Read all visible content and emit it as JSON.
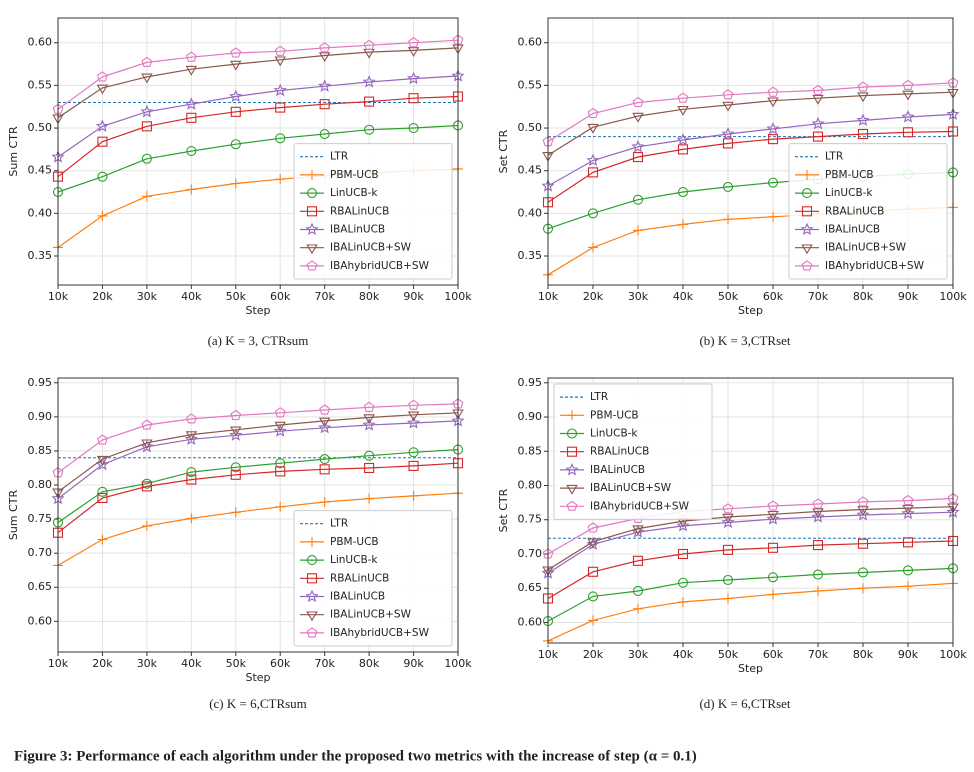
{
  "figure_caption": "Figure 3: Performance of each algorithm under the proposed two metrics with the increase of step (α = 0.1)",
  "chart_data": [
    {
      "type": "line",
      "caption": "(a) K = 3, CTRsum",
      "xlabel": "Step",
      "ylabel": "Sum CTR",
      "categories": [
        "10k",
        "20k",
        "30k",
        "40k",
        "50k",
        "60k",
        "70k",
        "80k",
        "90k",
        "100k"
      ],
      "ylim": [
        0.316,
        0.629
      ],
      "yticks": [
        0.35,
        {
          "value": 0.4,
          "label": "0.40"
        },
        0.45,
        {
          "value": 0.5,
          "label": "0.50"
        },
        0.55,
        {
          "value": 0.6,
          "label": "0.60"
        }
      ],
      "grid": true,
      "legend": "lower right",
      "series": [
        {
          "name": "LTR",
          "color": "#1f77b4",
          "linestyle": "dashed",
          "marker": "none",
          "values": [
            0.53,
            0.53,
            0.53,
            0.53,
            0.53,
            0.53,
            0.53,
            0.53,
            0.53,
            0.53
          ]
        },
        {
          "name": "PBM-UCB",
          "color": "#ff7f0e",
          "linestyle": "solid",
          "marker": "plus",
          "values": [
            0.36,
            0.397,
            0.42,
            0.428,
            0.435,
            0.44,
            0.444,
            0.447,
            0.45,
            0.452
          ]
        },
        {
          "name": "LinUCB-k",
          "color": "#2ca02c",
          "linestyle": "solid",
          "marker": "circle",
          "values": [
            0.425,
            0.443,
            0.464,
            0.473,
            0.481,
            0.488,
            0.493,
            0.498,
            0.5,
            0.503
          ]
        },
        {
          "name": "RBALinUCB",
          "color": "#d62728",
          "linestyle": "solid",
          "marker": "square",
          "values": [
            0.443,
            0.484,
            0.502,
            0.512,
            0.519,
            0.524,
            0.528,
            0.531,
            0.535,
            0.537
          ]
        },
        {
          "name": "IBALinUCB",
          "color": "#9467bd",
          "linestyle": "solid",
          "marker": "star",
          "values": [
            0.466,
            0.502,
            0.519,
            0.528,
            0.537,
            0.544,
            0.549,
            0.554,
            0.558,
            0.561
          ]
        },
        {
          "name": "IBALinUCB+SW",
          "color": "#8c564b",
          "linestyle": "solid",
          "marker": "triangle-down",
          "values": [
            0.512,
            0.547,
            0.56,
            0.569,
            0.575,
            0.58,
            0.585,
            0.589,
            0.591,
            0.594
          ]
        },
        {
          "name": "IBAhybridUCB+SW",
          "color": "#e377c2",
          "linestyle": "solid",
          "marker": "pentagon",
          "values": [
            0.522,
            0.56,
            0.577,
            0.583,
            0.588,
            0.59,
            0.594,
            0.597,
            0.6,
            0.603
          ]
        }
      ]
    },
    {
      "type": "line",
      "caption": "(b) K = 3,CTRset",
      "xlabel": "Step",
      "ylabel": "Set CTR",
      "categories": [
        "10k",
        "20k",
        "30k",
        "40k",
        "50k",
        "60k",
        "70k",
        "80k",
        "90k",
        "100k"
      ],
      "ylim": [
        0.316,
        0.629
      ],
      "yticks": [
        0.35,
        {
          "value": 0.4,
          "label": "0.40"
        },
        0.45,
        {
          "value": 0.5,
          "label": "0.50"
        },
        0.55,
        {
          "value": 0.6,
          "label": "0.60"
        }
      ],
      "grid": true,
      "legend": "lower right",
      "series": [
        {
          "name": "LTR",
          "color": "#1f77b4",
          "linestyle": "dashed",
          "marker": "none",
          "values": [
            0.49,
            0.49,
            0.49,
            0.49,
            0.49,
            0.49,
            0.49,
            0.49,
            0.49,
            0.49
          ]
        },
        {
          "name": "PBM-UCB",
          "color": "#ff7f0e",
          "linestyle": "solid",
          "marker": "plus",
          "values": [
            0.328,
            0.36,
            0.38,
            0.387,
            0.393,
            0.396,
            0.399,
            0.402,
            0.405,
            0.407
          ]
        },
        {
          "name": "LinUCB-k",
          "color": "#2ca02c",
          "linestyle": "solid",
          "marker": "circle",
          "values": [
            0.382,
            0.4,
            0.416,
            0.425,
            0.431,
            0.436,
            0.44,
            0.443,
            0.446,
            0.448
          ]
        },
        {
          "name": "RBALinUCB",
          "color": "#d62728",
          "linestyle": "solid",
          "marker": "square",
          "values": [
            0.413,
            0.448,
            0.466,
            0.475,
            0.482,
            0.487,
            0.49,
            0.493,
            0.495,
            0.496
          ]
        },
        {
          "name": "IBALinUCB",
          "color": "#9467bd",
          "linestyle": "solid",
          "marker": "star",
          "values": [
            0.432,
            0.462,
            0.478,
            0.486,
            0.493,
            0.499,
            0.505,
            0.509,
            0.513,
            0.516
          ]
        },
        {
          "name": "IBALinUCB+SW",
          "color": "#8c564b",
          "linestyle": "solid",
          "marker": "triangle-down",
          "values": [
            0.468,
            0.501,
            0.514,
            0.522,
            0.527,
            0.532,
            0.535,
            0.538,
            0.54,
            0.542
          ]
        },
        {
          "name": "IBAhybridUCB+SW",
          "color": "#e377c2",
          "linestyle": "solid",
          "marker": "pentagon",
          "values": [
            0.484,
            0.517,
            0.53,
            0.535,
            0.539,
            0.542,
            0.544,
            0.548,
            0.55,
            0.553
          ]
        }
      ]
    },
    {
      "type": "line",
      "caption": "(c) K = 6,CTRsum",
      "xlabel": "Step",
      "ylabel": "Sum CTR",
      "categories": [
        "10k",
        "20k",
        "30k",
        "40k",
        "50k",
        "60k",
        "70k",
        "80k",
        "90k",
        "100k"
      ],
      "ylim": [
        0.555,
        0.957
      ],
      "yticks": [
        {
          "value": 0.6,
          "label": "0.60"
        },
        0.65,
        {
          "value": 0.7,
          "label": "0.70"
        },
        0.75,
        {
          "value": 0.8,
          "label": "0.80"
        },
        0.85,
        {
          "value": 0.9,
          "label": "0.90"
        },
        0.95
      ],
      "grid": true,
      "legend": "lower right",
      "series": [
        {
          "name": "LTR",
          "color": "#1f77b4",
          "linestyle": "dashed",
          "marker": "none",
          "values": [
            0.84,
            0.84,
            0.84,
            0.84,
            0.84,
            0.84,
            0.84,
            0.84,
            0.84,
            0.84
          ]
        },
        {
          "name": "PBM-UCB",
          "color": "#ff7f0e",
          "linestyle": "solid",
          "marker": "plus",
          "values": [
            0.682,
            0.72,
            0.74,
            0.751,
            0.76,
            0.768,
            0.775,
            0.78,
            0.784,
            0.788
          ]
        },
        {
          "name": "LinUCB-k",
          "color": "#2ca02c",
          "linestyle": "solid",
          "marker": "circle",
          "values": [
            0.745,
            0.79,
            0.802,
            0.819,
            0.826,
            0.832,
            0.838,
            0.843,
            0.848,
            0.852
          ]
        },
        {
          "name": "RBALinUCB",
          "color": "#d62728",
          "linestyle": "solid",
          "marker": "square",
          "values": [
            0.73,
            0.781,
            0.798,
            0.808,
            0.815,
            0.82,
            0.823,
            0.825,
            0.828,
            0.832
          ]
        },
        {
          "name": "IBALinUCB",
          "color": "#9467bd",
          "linestyle": "solid",
          "marker": "star",
          "values": [
            0.78,
            0.83,
            0.856,
            0.867,
            0.873,
            0.879,
            0.884,
            0.888,
            0.891,
            0.894
          ]
        },
        {
          "name": "IBALinUCB+SW",
          "color": "#8c564b",
          "linestyle": "solid",
          "marker": "triangle-down",
          "values": [
            0.79,
            0.838,
            0.862,
            0.874,
            0.881,
            0.888,
            0.894,
            0.899,
            0.903,
            0.906
          ]
        },
        {
          "name": "IBAhybridUCB+SW",
          "color": "#e377c2",
          "linestyle": "solid",
          "marker": "pentagon",
          "values": [
            0.818,
            0.866,
            0.888,
            0.897,
            0.902,
            0.906,
            0.91,
            0.914,
            0.917,
            0.919
          ]
        }
      ]
    },
    {
      "type": "line",
      "caption": "(d) K = 6,CTRset",
      "xlabel": "Step",
      "ylabel": "Set CTR",
      "categories": [
        "10k",
        "20k",
        "30k",
        "40k",
        "50k",
        "60k",
        "70k",
        "80k",
        "90k",
        "100k"
      ],
      "ylim": [
        0.57,
        0.957
      ],
      "yticks": [
        {
          "value": 0.6,
          "label": "0.60"
        },
        0.65,
        {
          "value": 0.7,
          "label": "0.70"
        },
        0.75,
        {
          "value": 0.8,
          "label": "0.80"
        },
        0.85,
        {
          "value": 0.9,
          "label": "0.90"
        },
        0.95
      ],
      "grid": true,
      "legend": "upper left",
      "series": [
        {
          "name": "LTR",
          "color": "#1f77b4",
          "linestyle": "dashed",
          "marker": "none",
          "values": [
            0.723,
            0.723,
            0.723,
            0.723,
            0.723,
            0.723,
            0.723,
            0.723,
            0.723,
            0.723
          ]
        },
        {
          "name": "PBM-UCB",
          "color": "#ff7f0e",
          "linestyle": "solid",
          "marker": "plus",
          "values": [
            0.573,
            0.603,
            0.62,
            0.63,
            0.635,
            0.641,
            0.646,
            0.65,
            0.653,
            0.657
          ]
        },
        {
          "name": "LinUCB-k",
          "color": "#2ca02c",
          "linestyle": "solid",
          "marker": "circle",
          "values": [
            0.602,
            0.638,
            0.646,
            0.658,
            0.662,
            0.666,
            0.67,
            0.673,
            0.676,
            0.679
          ]
        },
        {
          "name": "RBALinUCB",
          "color": "#d62728",
          "linestyle": "solid",
          "marker": "square",
          "values": [
            0.635,
            0.674,
            0.69,
            0.7,
            0.706,
            0.709,
            0.713,
            0.715,
            0.717,
            0.719
          ]
        },
        {
          "name": "IBALinUCB",
          "color": "#9467bd",
          "linestyle": "solid",
          "marker": "star",
          "values": [
            0.672,
            0.714,
            0.732,
            0.741,
            0.746,
            0.751,
            0.754,
            0.757,
            0.759,
            0.761
          ]
        },
        {
          "name": "IBALinUCB+SW",
          "color": "#8c564b",
          "linestyle": "solid",
          "marker": "triangle-down",
          "values": [
            0.677,
            0.718,
            0.737,
            0.748,
            0.754,
            0.758,
            0.762,
            0.765,
            0.767,
            0.769
          ]
        },
        {
          "name": "IBAhybridUCB+SW",
          "color": "#e377c2",
          "linestyle": "solid",
          "marker": "pentagon",
          "values": [
            0.7,
            0.738,
            0.752,
            0.762,
            0.766,
            0.77,
            0.773,
            0.776,
            0.778,
            0.781
          ]
        }
      ]
    }
  ]
}
